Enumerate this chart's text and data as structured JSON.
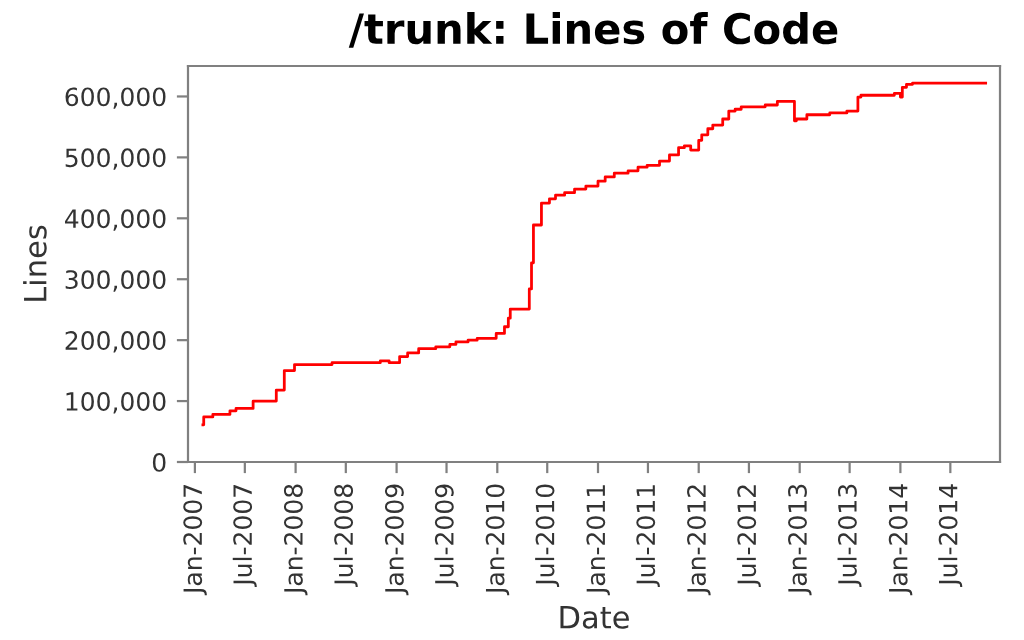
{
  "chart_data": {
    "type": "step",
    "title": "/trunk: Lines of Code",
    "xlabel": "Date",
    "ylabel": "Lines",
    "x": [
      "2007-01-30",
      "2007-02-02",
      "2007-03-07",
      "2007-05-08",
      "2007-05-30",
      "2007-07-31",
      "2007-10-23",
      "2007-11-21",
      "2007-12-28",
      "2008-05-12",
      "2008-11-03",
      "2008-12-05",
      "2009-01-12",
      "2009-02-10",
      "2009-03-22",
      "2009-05-23",
      "2009-07-13",
      "2009-08-04",
      "2009-09-17",
      "2009-10-20",
      "2009-12-28",
      "2010-01-27",
      "2010-02-10",
      "2010-02-17",
      "2010-04-27",
      "2010-05-05",
      "2010-05-12",
      "2010-06-10",
      "2010-07-09",
      "2010-07-31",
      "2010-09-02",
      "2010-10-08",
      "2010-11-18",
      "2011-01-01",
      "2011-01-27",
      "2011-03-01",
      "2011-04-20",
      "2011-05-26",
      "2011-06-28",
      "2011-08-12",
      "2011-09-17",
      "2011-10-20",
      "2011-11-10",
      "2011-12-03",
      "2012-01-01",
      "2012-01-12",
      "2012-02-03",
      "2012-02-21",
      "2012-03-28",
      "2012-04-19",
      "2012-05-12",
      "2012-06-03",
      "2012-08-29",
      "2012-10-12",
      "2012-12-13",
      "2012-12-20",
      "2013-01-27",
      "2013-04-20",
      "2013-06-21",
      "2013-07-31",
      "2013-08-11",
      "2013-12-10",
      "2014-01-01",
      "2014-01-08",
      "2014-01-23",
      "2014-02-14",
      "2014-11-06"
    ],
    "series": [
      {
        "color": "#ff0000",
        "values": [
          61000,
          74000,
          78000,
          84000,
          88000,
          100000,
          118000,
          150000,
          160000,
          163000,
          166000,
          163000,
          173000,
          179000,
          186000,
          189000,
          193000,
          197000,
          200000,
          203000,
          211000,
          222000,
          236000,
          251000,
          284000,
          327000,
          389000,
          425000,
          432000,
          438000,
          442000,
          448000,
          453000,
          461000,
          468000,
          474000,
          478000,
          484000,
          487000,
          494000,
          504000,
          516000,
          519000,
          512000,
          528000,
          537000,
          547000,
          553000,
          563000,
          576000,
          579000,
          583000,
          586000,
          592000,
          560000,
          563000,
          570000,
          573000,
          576000,
          599000,
          602000,
          605000,
          599000,
          615000,
          620000,
          622000,
          622000
        ]
      }
    ],
    "xlim": [
      "2006-12-07",
      "2014-12-28"
    ],
    "xticks": [
      {
        "value": "2007-01-01",
        "label": "Jan-2007"
      },
      {
        "value": "2007-07-01",
        "label": "Jul-2007"
      },
      {
        "value": "2008-01-01",
        "label": "Jan-2008"
      },
      {
        "value": "2008-07-01",
        "label": "Jul-2008"
      },
      {
        "value": "2009-01-01",
        "label": "Jan-2009"
      },
      {
        "value": "2009-07-01",
        "label": "Jul-2009"
      },
      {
        "value": "2010-01-01",
        "label": "Jan-2010"
      },
      {
        "value": "2010-07-01",
        "label": "Jul-2010"
      },
      {
        "value": "2011-01-01",
        "label": "Jan-2011"
      },
      {
        "value": "2011-07-01",
        "label": "Jul-2011"
      },
      {
        "value": "2012-01-01",
        "label": "Jan-2012"
      },
      {
        "value": "2012-07-01",
        "label": "Jul-2012"
      },
      {
        "value": "2013-01-01",
        "label": "Jan-2013"
      },
      {
        "value": "2013-07-01",
        "label": "Jul-2013"
      },
      {
        "value": "2014-01-01",
        "label": "Jan-2014"
      },
      {
        "value": "2014-07-01",
        "label": "Jul-2014"
      }
    ],
    "ylim": [
      0,
      650000
    ],
    "yticks": [
      0,
      {
        "value": 100000,
        "label": "100,000"
      },
      {
        "value": 200000,
        "label": "200,000"
      },
      {
        "value": 300000,
        "label": "300,000"
      },
      {
        "value": 400000,
        "label": "400,000"
      },
      {
        "value": 500000,
        "label": "500,000"
      },
      {
        "value": 600000,
        "label": "600,000"
      }
    ],
    "grid": false,
    "legend": false,
    "marker": "none",
    "line_style": "solid"
  }
}
